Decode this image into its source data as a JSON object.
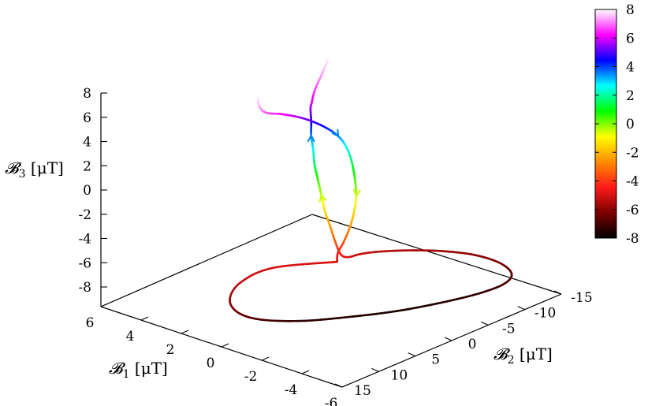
{
  "chart_data": {
    "type": "line",
    "title": "",
    "xlabel": "𝓑₁ [μT]",
    "ylabel": "𝓑₂ [μT]",
    "zlabel": "𝓑₃ [μT]",
    "axis_labels": {
      "b1": {
        "main": "𝓑",
        "sub": "1",
        "unit": " [μT]"
      },
      "b2": {
        "main": "𝓑",
        "sub": "2",
        "unit": " [μT]"
      },
      "b3": {
        "main": "𝓑",
        "sub": "3",
        "unit": " [μT]"
      }
    },
    "b1_range": [
      -6,
      6
    ],
    "b2_range": [
      -15,
      15
    ],
    "b3_range": [
      -9,
      9
    ],
    "b1_ticks": [
      "6",
      "4",
      "2",
      "0",
      "-2",
      "-4",
      "-6"
    ],
    "b2_ticks": [
      "15",
      "10",
      "5",
      "0",
      "-5",
      "-10",
      "-15"
    ],
    "b3_ticks": [
      "8",
      "6",
      "4",
      "2",
      "0",
      "-2",
      "-4",
      "-6",
      "-8"
    ],
    "colorbar": {
      "min": -8,
      "max": 8,
      "ticks": [
        "8",
        "6",
        "4",
        "2",
        "0",
        "-2",
        "-4",
        "-6",
        "-8"
      ],
      "palette": [
        "#000000",
        "#7d0000",
        "#ff1a1a",
        "#ff8c00",
        "#ffff00",
        "#00ff00",
        "#00ffff",
        "#0000ff",
        "#ff00ff",
        "#ffffff"
      ]
    },
    "curve_color_by": "b3",
    "series": [
      {
        "description_points": "trajectory sampled in data units [b1, b2, b3]",
        "points": [
          [
            -0.8,
            1.5,
            -5.0
          ],
          [
            0.6,
            6.5,
            -5.0
          ],
          [
            0.8,
            10.5,
            -5.3
          ],
          [
            0.4,
            13.2,
            -5.8
          ],
          [
            -0.2,
            13.8,
            -6.4
          ],
          [
            -0.9,
            12.6,
            -6.9
          ],
          [
            -1.8,
            9.5,
            -7.3
          ],
          [
            -2.7,
            5.5,
            -7.5
          ],
          [
            -3.6,
            1.2,
            -7.6
          ],
          [
            -4.4,
            -3.0,
            -7.5
          ],
          [
            -5.0,
            -6.5,
            -7.3
          ],
          [
            -5.3,
            -9.0,
            -7.0
          ],
          [
            -5.1,
            -10.6,
            -6.7
          ],
          [
            -4.4,
            -11.0,
            -6.3
          ],
          [
            -3.4,
            -10.3,
            -6.0
          ],
          [
            -2.4,
            -8.6,
            -5.8
          ],
          [
            -1.6,
            -6.3,
            -5.6
          ],
          [
            -1.0,
            -3.8,
            -5.4
          ],
          [
            -0.8,
            -1.8,
            -5.2
          ],
          [
            -0.8,
            0.0,
            -5.0
          ],
          [
            -0.8,
            1.0,
            -4.5
          ],
          [
            -0.6,
            1.2,
            -3.5
          ],
          [
            -0.3,
            1.0,
            -2.5
          ],
          [
            0.1,
            0.6,
            -1.5
          ],
          [
            0.4,
            0.2,
            -0.5
          ],
          [
            0.7,
            -0.2,
            0.5
          ],
          [
            1.0,
            -0.6,
            1.5
          ],
          [
            1.2,
            -1.0,
            2.5
          ],
          [
            1.4,
            -1.3,
            3.5
          ],
          [
            1.5,
            -1.6,
            4.5
          ],
          [
            1.6,
            -1.8,
            5.5
          ],
          [
            1.6,
            -2.0,
            6.0
          ],
          [
            1.8,
            -3.0,
            6.6
          ],
          [
            2.2,
            -5.5,
            7.5
          ],
          [
            2.8,
            -8.5,
            8.4
          ],
          [
            3.5,
            -11.0,
            9.3
          ],
          [
            4.2,
            -12.8,
            10.0
          ],
          [
            4.8,
            -13.6,
            10.5
          ],
          [
            5.1,
            -13.2,
            10.8
          ],
          [
            5.0,
            -11.4,
            10.8
          ],
          [
            4.5,
            -8.4,
            10.5
          ],
          [
            3.8,
            -4.6,
            10.0
          ],
          [
            3.0,
            -0.6,
            9.3
          ],
          [
            2.4,
            2.8,
            8.6
          ],
          [
            1.9,
            4.8,
            7.9
          ],
          [
            1.6,
            5.3,
            7.3
          ],
          [
            1.5,
            4.6,
            6.8
          ],
          [
            1.4,
            2.8,
            6.3
          ],
          [
            1.2,
            0.5,
            5.5
          ],
          [
            0.9,
            -1.5,
            4.5
          ],
          [
            0.6,
            -2.8,
            3.5
          ],
          [
            0.3,
            -3.2,
            2.5
          ],
          [
            0.0,
            -3.0,
            1.5
          ],
          [
            -0.3,
            -2.5,
            0.5
          ],
          [
            -0.6,
            -1.8,
            -0.5
          ],
          [
            -0.8,
            -0.9,
            -1.5
          ],
          [
            -0.9,
            0.0,
            -2.5
          ],
          [
            -0.9,
            0.9,
            -3.5
          ],
          [
            -0.8,
            1.4,
            -4.3
          ],
          [
            -0.8,
            1.5,
            -5.0
          ]
        ],
        "arrow_indices": [
          24,
          28,
          43,
          50,
          54
        ]
      }
    ],
    "grid": false,
    "legend": "colorbar-right"
  }
}
